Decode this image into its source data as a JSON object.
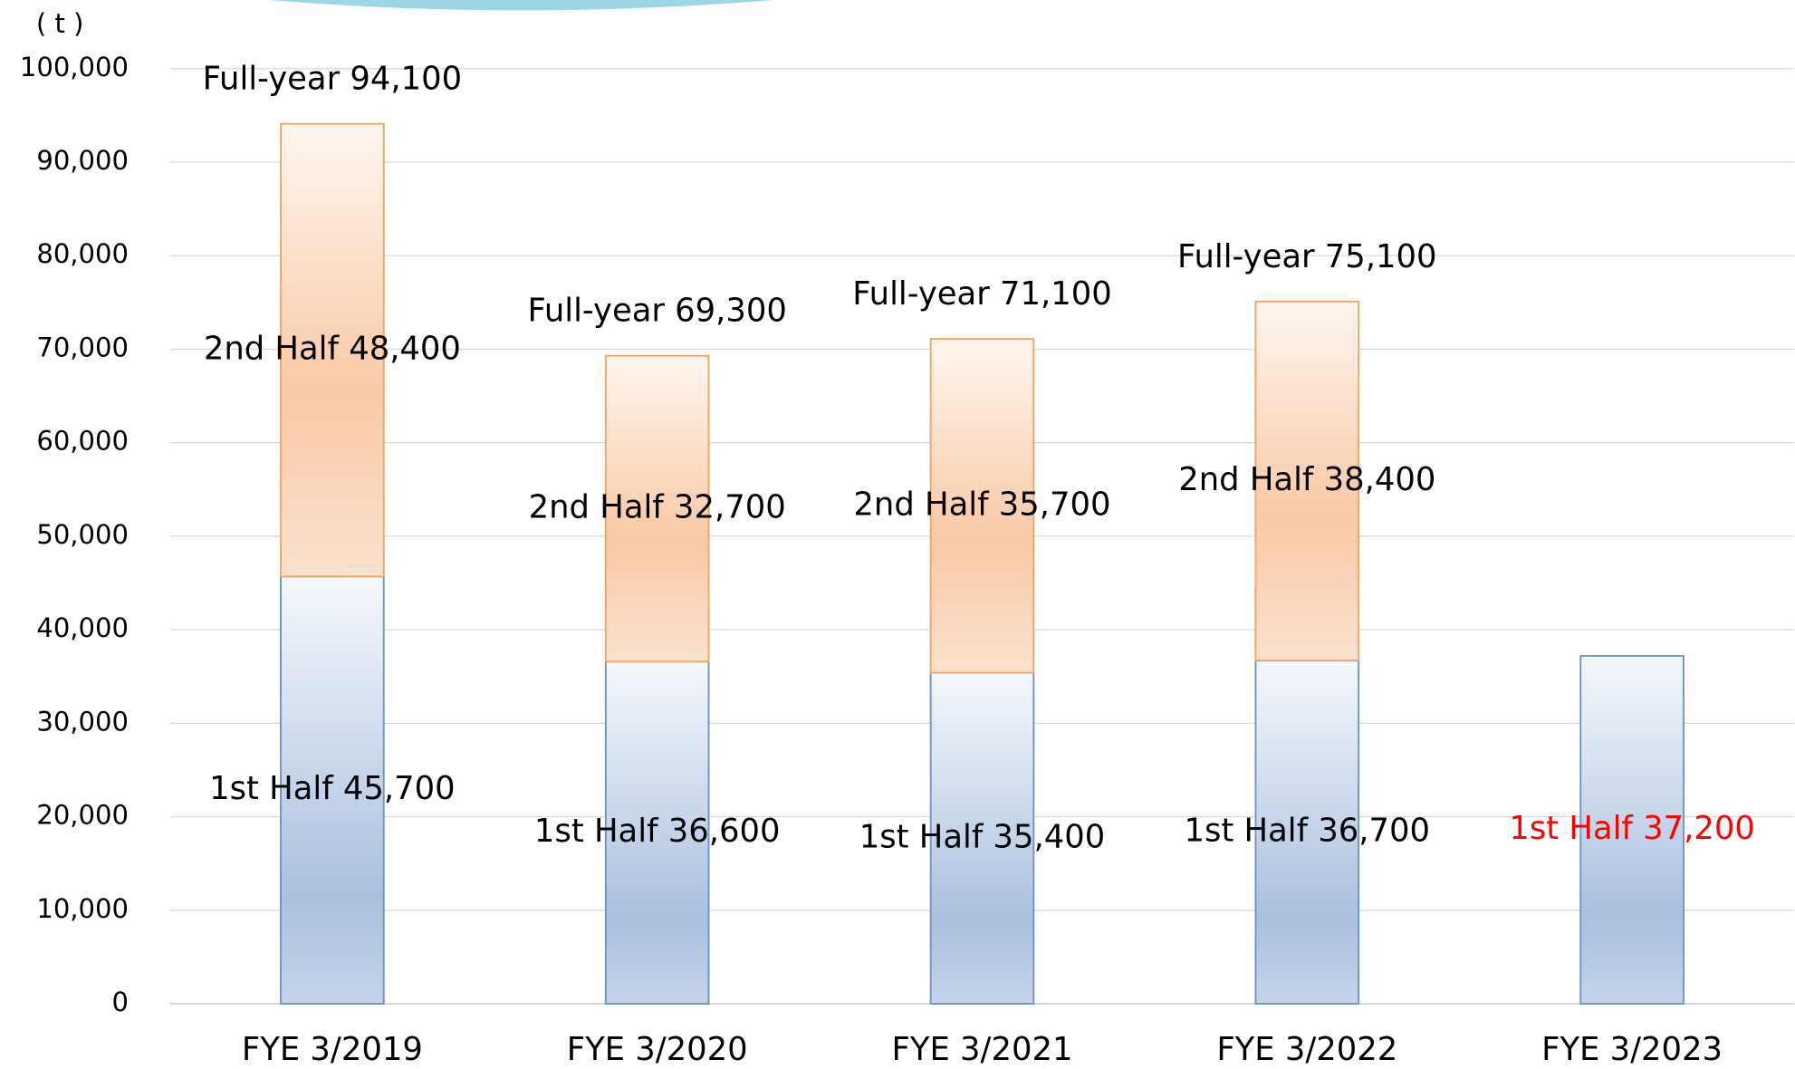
{
  "chart_data": {
    "type": "stacked_bar",
    "y_axis_label": "( t )",
    "categories": [
      "FYE 3/2019",
      "FYE 3/2020",
      "FYE 3/2021",
      "FYE 3/2022",
      "FYE 3/2023"
    ],
    "series": [
      {
        "name": "1st Half",
        "color": "#aac0df",
        "stroke": "#6f93c8",
        "values": [
          45700,
          36600,
          35400,
          36700,
          37200
        ],
        "value_labels": [
          "1st Half 45,700",
          "1st Half 36,600",
          "1st Half 35,400",
          "1st Half 36,700",
          "1st Half 37,200"
        ],
        "label_colors": [
          "#000000",
          "#000000",
          "#000000",
          "#000000",
          "#ff0000"
        ]
      },
      {
        "name": "2nd Half",
        "color": "#f9c9a5",
        "stroke": "#f0a468",
        "values": [
          48400,
          32700,
          35700,
          38400,
          null
        ],
        "value_labels": [
          "2nd Half 48,400",
          "2nd Half 32,700",
          "2nd Half 35,700",
          "2nd Half 38,400",
          null
        ],
        "label_colors": [
          "#000000",
          "#000000",
          "#000000",
          "#000000",
          null
        ]
      }
    ],
    "total_labels": [
      "Full-year 94,100",
      "Full-year 69,300",
      "Full-year 71,100",
      "Full-year 75,100",
      null
    ],
    "ylim": [
      0,
      100000
    ],
    "yticks": [
      0,
      {
        "value": 10000,
        "label": "10,000"
      },
      {
        "value": 20000,
        "label": "20,000"
      },
      {
        "value": 30000,
        "label": "30,000"
      },
      {
        "value": 40000,
        "label": "40,000"
      },
      {
        "value": 50000,
        "label": "50,000"
      },
      {
        "value": 60000,
        "label": "60,000"
      },
      {
        "value": 70000,
        "label": "70,000"
      },
      {
        "value": 80000,
        "label": "80,000"
      },
      {
        "value": 90000,
        "label": "90,000"
      },
      {
        "value": 100000,
        "label": "100,000"
      }
    ],
    "grid": true
  }
}
